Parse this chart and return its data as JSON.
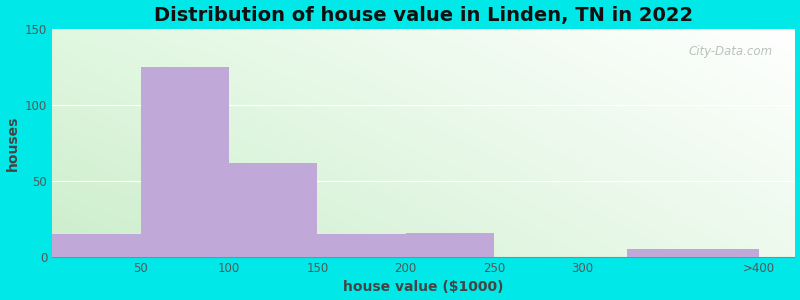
{
  "title": "Distribution of house value in Linden, TN in 2022",
  "xlabel": "house value ($1000)",
  "ylabel": "houses",
  "bar_left_edges": [
    0,
    50,
    100,
    150,
    200,
    250,
    325
  ],
  "bar_widths": [
    50,
    50,
    50,
    50,
    50,
    50,
    75
  ],
  "bar_heights": [
    15,
    125,
    62,
    15,
    16,
    0,
    5
  ],
  "bar_color": "#c0a8d8",
  "ylim": [
    0,
    150
  ],
  "yticks": [
    0,
    50,
    100,
    150
  ],
  "xtick_positions": [
    50,
    100,
    150,
    200,
    250,
    300,
    400
  ],
  "xtick_labels": [
    "50",
    "100",
    "150",
    "200",
    "250",
    "300",
    ">400"
  ],
  "xlim": [
    0,
    420
  ],
  "outer_bg": "#00e8e8",
  "bg_gradient_colors": [
    "#d8f0d0",
    "#edfaed",
    "#f5fff5",
    "#ffffff"
  ],
  "title_fontsize": 14,
  "axis_label_fontsize": 10,
  "watermark_text": "City-Data.com"
}
